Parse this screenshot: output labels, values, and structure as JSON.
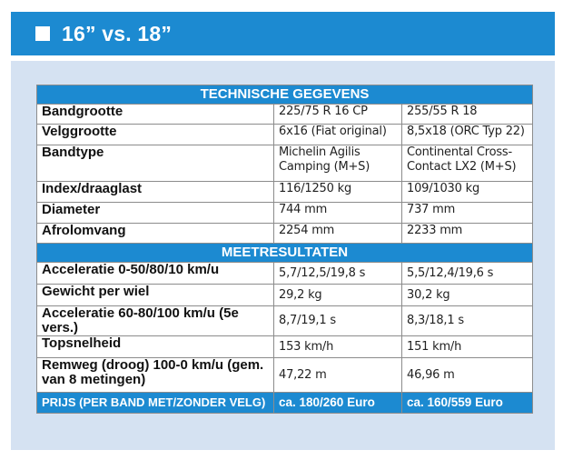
{
  "header": {
    "title": "16” vs. 18”"
  },
  "colors": {
    "accent": "#1c8ad1",
    "panel": "#d5e2f2"
  },
  "table": {
    "section_tech": "TECHNISCHE GEGEVENS",
    "section_meet": "MEETRESULTATEN",
    "tech_rows": [
      {
        "label": "Bandgrootte",
        "a": "225/75 R 16 CP",
        "b": "255/55 R 18"
      },
      {
        "label": "Velggrootte",
        "a": "6x16 (Fiat original)",
        "b": "8,5x18 (ORC Typ 22)"
      },
      {
        "label": "Bandtype",
        "a": "Michelin Agilis Camping (M+S)",
        "b": "Continental Cross-Contact LX2 (M+S)"
      },
      {
        "label": "Index/draaglast",
        "a": "116/1250 kg",
        "b": "109/1030 kg"
      },
      {
        "label": "Diameter",
        "a": "744 mm",
        "b": "737 mm"
      },
      {
        "label": "Afrolomvang",
        "a": "2254 mm",
        "b": "2233 mm"
      }
    ],
    "meet_rows": [
      {
        "label": "Acceleratie 0-50/80/10 km/u",
        "a": "5,7/12,5/19,8 s",
        "b": "5,5/12,4/19,6 s"
      },
      {
        "label": "Gewicht per wiel",
        "a": "29,2 kg",
        "b": "30,2 kg"
      },
      {
        "label": "Acceleratie 60-80/100 km/u (5e vers.)",
        "a": "8,7/19,1 s",
        "b": "8,3/18,1 s"
      },
      {
        "label": "Topsnelheid",
        "a": "153 km/h",
        "b": "151 km/h"
      },
      {
        "label": "Remweg (droog) 100-0 km/u (gem. van 8 metingen)",
        "a": "47,22 m",
        "b": "46,96 m"
      }
    ],
    "price": {
      "label": "PRIJS (PER BAND MET/ZONDER VELG)",
      "a": "ca. 180/260 Euro",
      "b": "ca. 160/559 Euro"
    }
  }
}
